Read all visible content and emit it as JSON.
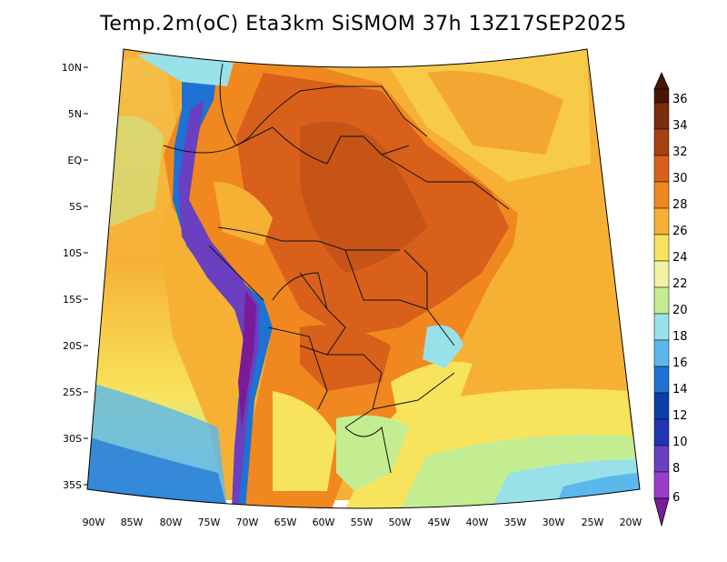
{
  "title": "Temp.2m(oC) Eta3km SiSMOM 37h 13Z17SEP2025",
  "map": {
    "lat_labels": [
      "10N",
      "5N",
      "EQ",
      "5S",
      "10S",
      "15S",
      "20S",
      "25S",
      "30S",
      "35S"
    ],
    "lon_labels": [
      "90W",
      "85W",
      "80W",
      "75W",
      "70W",
      "65W",
      "60W",
      "55W",
      "50W",
      "45W",
      "40W",
      "35W",
      "30W",
      "25W",
      "20W"
    ],
    "lat_range": [
      -38,
      12
    ],
    "lon_range": [
      -91,
      -19
    ]
  },
  "colorbar": {
    "labels": [
      "36",
      "34",
      "32",
      "30",
      "28",
      "26",
      "24",
      "22",
      "20",
      "18",
      "16",
      "14",
      "12",
      "10",
      "8",
      "6"
    ],
    "colors": [
      "#4a1500",
      "#7a2e0c",
      "#a64010",
      "#d8601a",
      "#f0881f",
      "#f6b135",
      "#f8e45c",
      "#f1f3a3",
      "#c4ed91",
      "#99e1e9",
      "#5bb8ec",
      "#1d72d4",
      "#0b3fa8",
      "#1f35b3",
      "#6a3fc0",
      "#9a3ec8",
      "#7a1b98"
    ]
  }
}
